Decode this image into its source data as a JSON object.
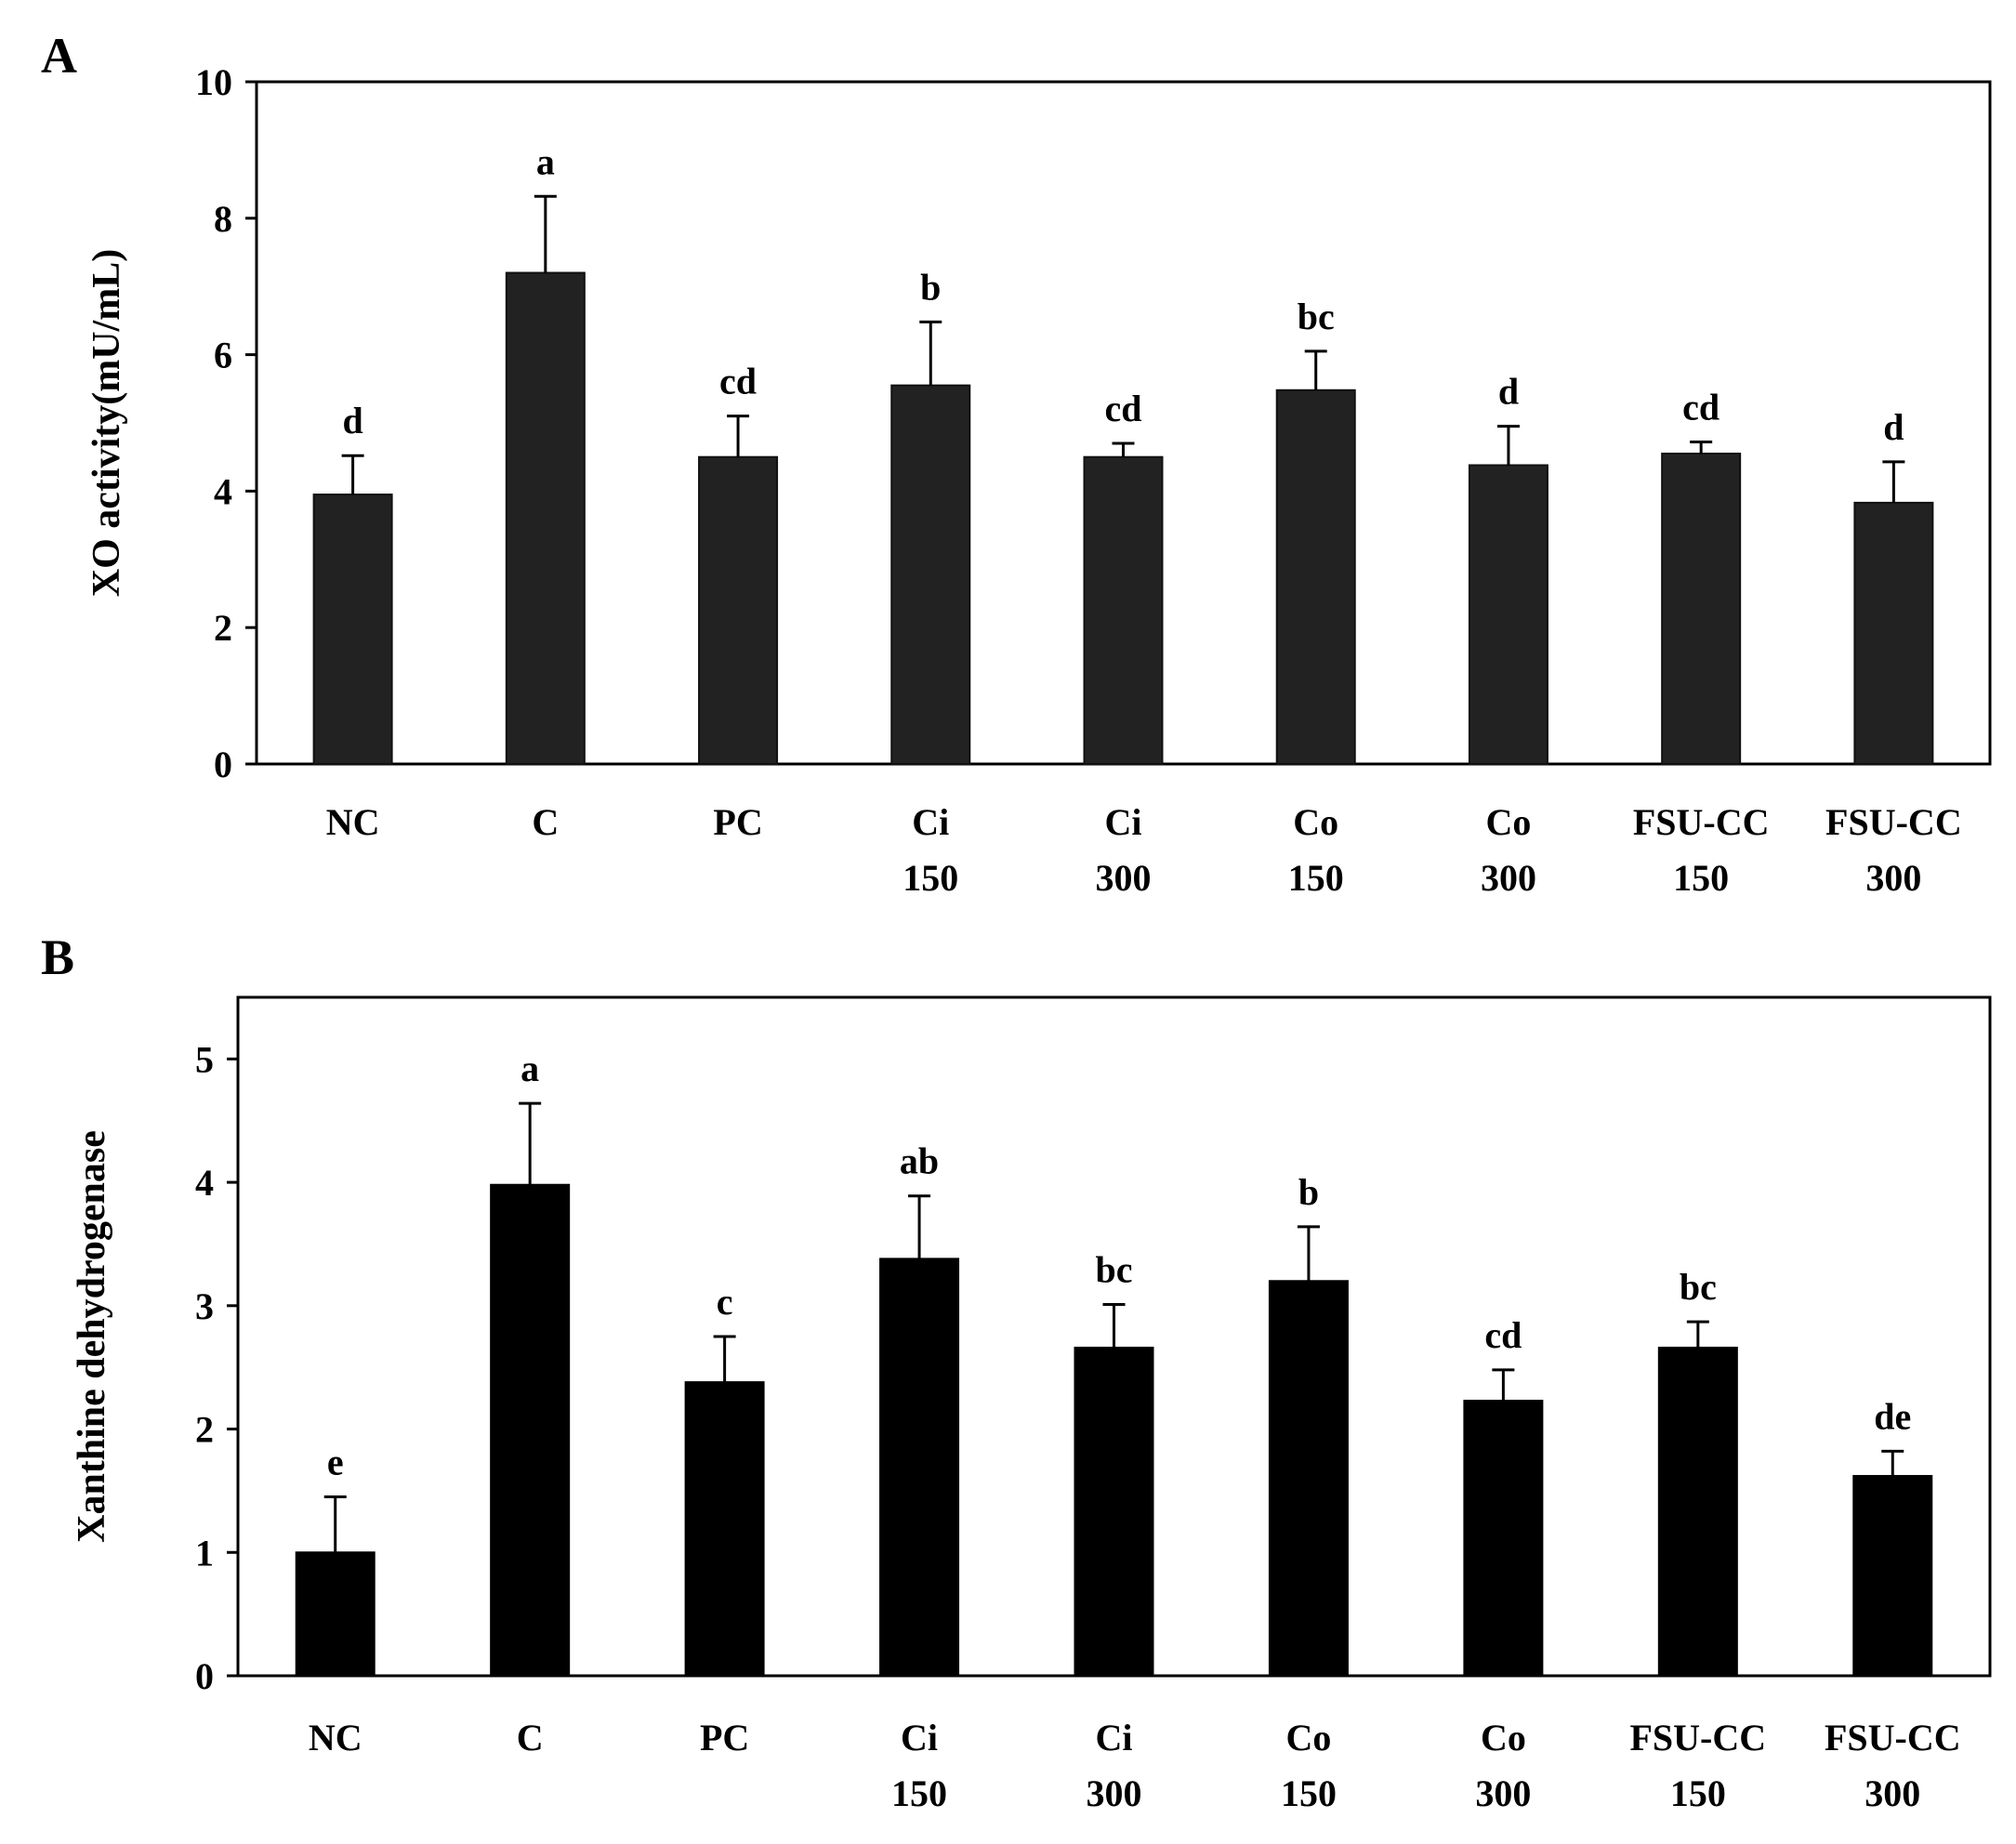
{
  "chart_data": [
    {
      "panel_label": "A",
      "type": "bar",
      "title": "",
      "xlabel": "",
      "ylabel": "XO activity(mU/mL)",
      "ylim": [
        0,
        10
      ],
      "yticks": [
        0,
        2,
        4,
        6,
        8,
        10
      ],
      "categories": [
        [
          "NC"
        ],
        [
          "C"
        ],
        [
          "PC"
        ],
        [
          "Ci",
          "150"
        ],
        [
          "Ci",
          "300"
        ],
        [
          "Co",
          "150"
        ],
        [
          "Co",
          "300"
        ],
        [
          "FSU-CC",
          "150"
        ],
        [
          "FSU-CC",
          "300"
        ]
      ],
      "values": [
        3.95,
        7.2,
        4.5,
        5.55,
        4.5,
        5.48,
        4.38,
        4.55,
        3.83
      ],
      "errors": [
        0.57,
        1.12,
        0.6,
        0.93,
        0.2,
        0.57,
        0.57,
        0.17,
        0.6
      ],
      "significance_labels": [
        "d",
        "a",
        "cd",
        "b",
        "cd",
        "bc",
        "d",
        "cd",
        "d"
      ],
      "bar_color": "#222222",
      "grid": false
    },
    {
      "panel_label": "B",
      "type": "bar",
      "title": "",
      "xlabel": "",
      "ylabel": "Xanthine dehydrogenase",
      "ylim": [
        0,
        5.5
      ],
      "yticks": [
        0,
        1,
        2,
        3,
        4,
        5
      ],
      "categories": [
        [
          "NC"
        ],
        [
          "C"
        ],
        [
          "PC"
        ],
        [
          "Ci",
          "150"
        ],
        [
          "Ci",
          "300"
        ],
        [
          "Co",
          "150"
        ],
        [
          "Co",
          "300"
        ],
        [
          "FSU-CC",
          "150"
        ],
        [
          "FSU-CC",
          "300"
        ]
      ],
      "values": [
        1.0,
        3.98,
        2.38,
        3.38,
        2.66,
        3.2,
        2.23,
        2.66,
        1.62
      ],
      "errors": [
        0.45,
        0.66,
        0.37,
        0.51,
        0.35,
        0.44,
        0.25,
        0.21,
        0.2
      ],
      "significance_labels": [
        "e",
        "a",
        "c",
        "ab",
        "bc",
        "b",
        "cd",
        "bc",
        "de"
      ],
      "bar_color": "#000000",
      "grid": false
    }
  ]
}
